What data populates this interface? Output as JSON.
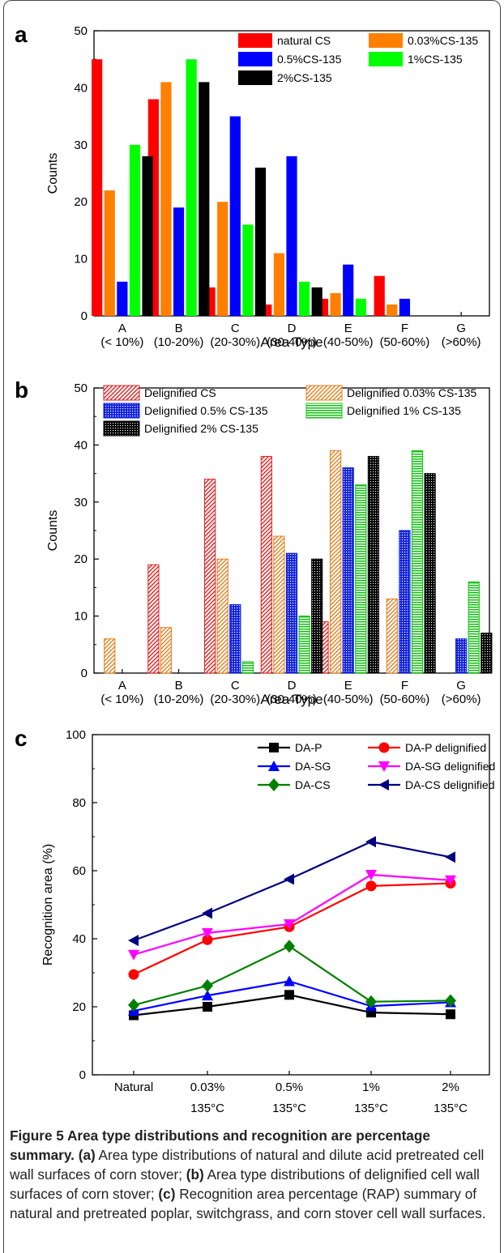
{
  "chart_data": [
    {
      "panel": "a",
      "type": "bar",
      "xlabel": "Area Type",
      "ylabel": "Counts",
      "ylim": [
        0,
        50
      ],
      "yticks": [
        0,
        10,
        20,
        30,
        40,
        50
      ],
      "categories": [
        "A",
        "B",
        "C",
        "D",
        "E",
        "F",
        "G"
      ],
      "category_sublabels": [
        "(< 10%)",
        "(10-20%)",
        "(20-30%)",
        "(30-40%)",
        "(40-50%)",
        "(50-60%)",
        "(>60%)"
      ],
      "legend_position": "top-right",
      "series": [
        {
          "name": "natural CS",
          "color": "#ff0000",
          "values": [
            45,
            38,
            5,
            2,
            3,
            7,
            0
          ]
        },
        {
          "name": "0.03%CS-135",
          "color": "#ff7f00",
          "values": [
            22,
            41,
            20,
            11,
            4,
            2,
            0
          ]
        },
        {
          "name": "0.5%CS-135",
          "color": "#0000ff",
          "values": [
            6,
            19,
            35,
            28,
            9,
            3,
            0
          ]
        },
        {
          "name": "1%CS-135",
          "color": "#00ff00",
          "values": [
            30,
            45,
            16,
            6,
            3,
            0,
            0
          ]
        },
        {
          "name": "2%CS-135",
          "color": "#000000",
          "values": [
            28,
            41,
            26,
            5,
            0,
            0,
            0
          ]
        }
      ]
    },
    {
      "panel": "b",
      "type": "bar",
      "xlabel": "Area Type",
      "ylabel": "Counts",
      "ylim": [
        0,
        50
      ],
      "yticks": [
        0,
        10,
        20,
        30,
        40,
        50
      ],
      "categories": [
        "A",
        "B",
        "C",
        "D",
        "E",
        "F",
        "G"
      ],
      "category_sublabels": [
        "(< 10%)",
        "(10-20%)",
        "(20-30%)",
        "(30-40%)",
        "(40-50%)",
        "(50-60%)",
        "(>60%)"
      ],
      "legend_position": "top",
      "series": [
        {
          "name": "Delignified CS",
          "color": "#e02020",
          "pattern": "hatch",
          "values": [
            0,
            19,
            34,
            38,
            9,
            0,
            0
          ]
        },
        {
          "name": "Delignified 0.03% CS-135",
          "color": "#e08020",
          "pattern": "hatch",
          "values": [
            6,
            8,
            20,
            24,
            39,
            13,
            0
          ]
        },
        {
          "name": "Delignified 0.5% CS-135",
          "color": "#1020e0",
          "pattern": "dots",
          "values": [
            0,
            0,
            12,
            21,
            36,
            25,
            6
          ]
        },
        {
          "name": "Delignified 1% CS-135",
          "color": "#10c010",
          "pattern": "hlines",
          "values": [
            0,
            0,
            2,
            10,
            33,
            39,
            16
          ]
        },
        {
          "name": "Delignified 2% CS-135",
          "color": "#000000",
          "pattern": "grid",
          "values": [
            0,
            0,
            0,
            20,
            38,
            35,
            7
          ]
        }
      ]
    },
    {
      "panel": "c",
      "type": "line",
      "xlabel": "",
      "ylabel": "Recognition area (%)",
      "ylim": [
        0,
        100
      ],
      "yticks": [
        0,
        20,
        40,
        60,
        80,
        100
      ],
      "categories": [
        "Natural",
        "0.03%",
        "0.5%",
        "1%",
        "2%"
      ],
      "category_sublabels": [
        "",
        "135°C",
        "135°C",
        "135°C",
        "135°C"
      ],
      "legend_position": "top-right",
      "series": [
        {
          "name": "DA-P",
          "color": "#000000",
          "marker": "square",
          "values": [
            17.5,
            20,
            23.5,
            18.3,
            17.8
          ]
        },
        {
          "name": "DA-P delignified",
          "color": "#ff0000",
          "marker": "circle",
          "values": [
            29.5,
            39.7,
            43.5,
            55.5,
            56.3
          ]
        },
        {
          "name": "DA-SG",
          "color": "#0000ff",
          "marker": "triangle-up",
          "values": [
            18.8,
            23.3,
            27.5,
            20.2,
            21.3
          ]
        },
        {
          "name": "DA-SG delignified",
          "color": "#ff00ff",
          "marker": "triangle-down",
          "values": [
            35.3,
            41.7,
            44.3,
            58.8,
            57.2
          ]
        },
        {
          "name": "DA-CS",
          "color": "#008000",
          "marker": "diamond",
          "values": [
            20.5,
            26.2,
            37.8,
            21.5,
            21.8
          ]
        },
        {
          "name": "DA-CS delignified",
          "color": "#000080",
          "marker": "triangle-left",
          "values": [
            39.5,
            47.5,
            57.5,
            68.5,
            64
          ]
        }
      ]
    }
  ],
  "panel_labels": {
    "a": "a",
    "b": "b",
    "c": "c"
  },
  "caption": {
    "title": "Figure 5 Area type distributions and recognition are percentage summary.",
    "a_tag": "(a)",
    "a_text": " Area type distributions of natural and dilute acid pretreated cell wall surfaces of corn stover; ",
    "b_tag": "(b)",
    "b_text": " Area type distributions of delignified cell wall surfaces of corn stover; ",
    "c_tag": "(c)",
    "c_text": " Recognition area percentage (RAP) summary of natural and pretreated poplar, switchgrass, and corn stover cell wall surfaces."
  }
}
